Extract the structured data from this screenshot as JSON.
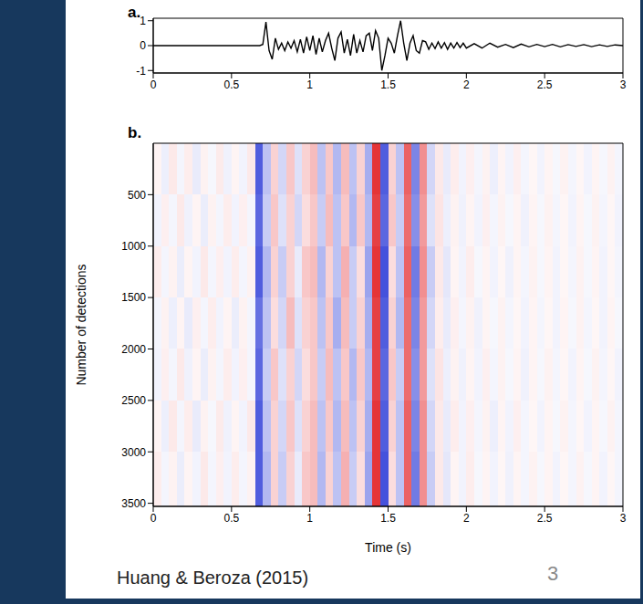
{
  "chart_data": [
    {
      "type": "line",
      "panel_label": "a.",
      "color": "#000000",
      "x": [
        0,
        0.5,
        0.68,
        0.7,
        0.72,
        0.74,
        0.76,
        0.78,
        0.8,
        0.82,
        0.84,
        0.86,
        0.88,
        0.9,
        0.92,
        0.94,
        0.96,
        0.98,
        1,
        1.02,
        1.04,
        1.06,
        1.08,
        1.1,
        1.12,
        1.14,
        1.16,
        1.18,
        1.2,
        1.22,
        1.24,
        1.26,
        1.28,
        1.3,
        1.32,
        1.34,
        1.36,
        1.38,
        1.4,
        1.42,
        1.44,
        1.46,
        1.48,
        1.5,
        1.52,
        1.54,
        1.56,
        1.58,
        1.6,
        1.62,
        1.64,
        1.66,
        1.68,
        1.7,
        1.72,
        1.74,
        1.76,
        1.78,
        1.8,
        1.82,
        1.84,
        1.86,
        1.88,
        1.9,
        1.92,
        1.94,
        1.96,
        1.98,
        2,
        2.05,
        2.1,
        2.15,
        2.2,
        2.25,
        2.3,
        2.35,
        2.4,
        2.45,
        2.5,
        2.55,
        2.6,
        2.65,
        2.7,
        2.75,
        2.8,
        2.85,
        2.9,
        2.95,
        3
      ],
      "values": [
        0,
        0,
        0,
        0.05,
        0.95,
        -0.2,
        -0.55,
        0.3,
        -0.15,
        0.1,
        -0.2,
        0.15,
        -0.1,
        0.2,
        -0.25,
        0.25,
        -0.3,
        0.35,
        -0.2,
        0.4,
        -0.35,
        0.3,
        -0.25,
        0.2,
        0.5,
        -0.1,
        -0.6,
        0.3,
        0.55,
        -0.3,
        0.25,
        -0.4,
        0.45,
        -0.3,
        0.2,
        -0.25,
        0.4,
        0.5,
        -0.2,
        0.6,
        0.3,
        -1.0,
        -0.4,
        0.3,
        0.1,
        -0.3,
        0.4,
        1.0,
        0.1,
        -0.6,
        0.1,
        0.4,
        -0.2,
        -0.3,
        0.2,
        0.15,
        -0.15,
        0.1,
        -0.12,
        0.15,
        -0.1,
        0.12,
        -0.15,
        0.1,
        -0.1,
        0.12,
        -0.08,
        0.1,
        -0.1,
        0.08,
        -0.1,
        0.1,
        -0.06,
        0.05,
        -0.08,
        0.06,
        -0.05,
        0.05,
        -0.04,
        0.05,
        -0.05,
        0.04,
        -0.03,
        0.04,
        -0.04,
        0.03,
        -0.03,
        0.03,
        0
      ],
      "xlim": [
        0,
        3
      ],
      "xticks": [
        0,
        0.5,
        1,
        1.5,
        2,
        2.5,
        3
      ],
      "ylim": [
        -1.1,
        1.1
      ],
      "yticks": [
        -1,
        0,
        1
      ]
    },
    {
      "type": "heatmap",
      "panel_label": "b.",
      "x_label": "Time (s)",
      "y_label": "Number of detections",
      "xbins": [
        0,
        0.05,
        0.1,
        0.15,
        0.2,
        0.25,
        0.3,
        0.35,
        0.4,
        0.45,
        0.5,
        0.55,
        0.6,
        0.65,
        0.7,
        0.75,
        0.8,
        0.85,
        0.9,
        0.95,
        1,
        1.05,
        1.1,
        1.15,
        1.2,
        1.25,
        1.3,
        1.35,
        1.4,
        1.45,
        1.5,
        1.55,
        1.6,
        1.65,
        1.7,
        1.75,
        1.8,
        1.85,
        1.9,
        1.95,
        2,
        2.05,
        2.1,
        2.15,
        2.2,
        2.25,
        2.3,
        2.35,
        2.4,
        2.45,
        2.5,
        2.55,
        2.6,
        2.65,
        2.7,
        2.75,
        2.8,
        2.85,
        2.9,
        2.95,
        3
      ],
      "ybins": [
        0,
        500,
        1000,
        1500,
        2000,
        2500,
        3000,
        3530
      ],
      "cells": [
        [
          0.05,
          -0.08,
          0.1,
          -0.05,
          0.08,
          -0.1,
          0.06,
          -0.04,
          0.09,
          -0.07,
          0.05,
          -0.06,
          0.1,
          -0.8,
          -0.3,
          0.2,
          -0.2,
          0.25,
          -0.15,
          0.2,
          0.3,
          -0.3,
          0.25,
          -0.35,
          0.3,
          -0.3,
          0.2,
          -0.4,
          0.9,
          -0.8,
          0.2,
          -0.3,
          0.7,
          -0.6,
          0.5,
          -0.2,
          0.1,
          -0.1,
          0.08,
          -0.06,
          0.07,
          -0.05,
          0.06,
          -0.08,
          0.05,
          -0.06,
          0.07,
          -0.05,
          0.04,
          -0.06,
          0.05,
          -0.04,
          0.06,
          -0.05,
          0.04,
          -0.06,
          0.05,
          -0.04,
          0.06,
          -0.05
        ],
        [
          -0.06,
          0.07,
          -0.05,
          0.1,
          -0.07,
          0.05,
          -0.09,
          0.06,
          -0.05,
          0.08,
          -0.06,
          0.07,
          -0.05,
          -0.75,
          -0.25,
          0.25,
          -0.15,
          0.2,
          -0.2,
          0.15,
          0.25,
          -0.25,
          0.3,
          -0.3,
          0.25,
          -0.35,
          0.25,
          -0.35,
          0.85,
          -0.75,
          0.25,
          -0.25,
          0.65,
          -0.55,
          0.45,
          -0.15,
          0.12,
          -0.08,
          0.06,
          -0.07,
          0.05,
          -0.06,
          0.07,
          -0.05,
          0.06,
          -0.04,
          0.05,
          -0.07,
          0.05,
          -0.04,
          0.06,
          -0.05,
          0.04,
          -0.06,
          0.05,
          -0.04,
          0.06,
          -0.05,
          0.04,
          -0.06
        ],
        [
          0.08,
          -0.05,
          0.06,
          -0.09,
          0.05,
          -0.06,
          0.1,
          -0.05,
          0.07,
          -0.06,
          0.08,
          -0.05,
          0.06,
          -0.8,
          -0.35,
          0.2,
          -0.25,
          0.2,
          -0.1,
          0.25,
          0.3,
          -0.35,
          0.2,
          -0.3,
          0.35,
          -0.25,
          0.15,
          -0.45,
          0.9,
          -0.85,
          0.15,
          -0.3,
          0.7,
          -0.65,
          0.5,
          -0.25,
          0.1,
          -0.12,
          0.05,
          -0.06,
          0.08,
          -0.04,
          0.05,
          -0.06,
          0.04,
          -0.07,
          0.05,
          -0.05,
          0.06,
          -0.04,
          0.05,
          -0.06,
          0.04,
          -0.05,
          0.06,
          -0.04,
          0.05,
          -0.06,
          0.04,
          -0.05
        ],
        [
          -0.05,
          0.06,
          -0.08,
          0.05,
          -0.1,
          0.07,
          -0.05,
          0.08,
          -0.06,
          0.05,
          -0.09,
          0.06,
          -0.05,
          -0.7,
          -0.3,
          0.15,
          -0.2,
          0.3,
          -0.15,
          0.2,
          0.25,
          -0.3,
          0.25,
          -0.4,
          0.3,
          -0.25,
          0.2,
          -0.4,
          0.85,
          -0.8,
          0.2,
          -0.35,
          0.65,
          -0.6,
          0.45,
          -0.2,
          0.08,
          -0.1,
          0.07,
          -0.05,
          0.06,
          -0.07,
          0.05,
          -0.04,
          0.06,
          -0.05,
          0.04,
          -0.06,
          0.05,
          -0.05,
          0.04,
          -0.06,
          0.05,
          -0.04,
          0.06,
          -0.05,
          0.04,
          -0.06,
          0.05,
          -0.04
        ],
        [
          -0.06,
          0.07,
          -0.05,
          0.1,
          -0.07,
          0.05,
          -0.09,
          0.06,
          -0.05,
          0.08,
          -0.06,
          0.07,
          -0.05,
          -0.75,
          -0.25,
          0.25,
          -0.15,
          0.2,
          -0.2,
          0.15,
          0.25,
          -0.25,
          0.3,
          -0.3,
          0.25,
          -0.35,
          0.25,
          -0.35,
          0.85,
          -0.75,
          0.25,
          -0.25,
          0.65,
          -0.55,
          0.45,
          -0.15,
          0.12,
          -0.08,
          0.06,
          -0.07,
          0.05,
          -0.06,
          0.07,
          -0.05,
          0.06,
          -0.04,
          0.05,
          -0.07,
          0.05,
          -0.04,
          0.06,
          -0.05,
          0.04,
          -0.06,
          0.05,
          -0.04,
          0.06,
          -0.05,
          0.04,
          -0.06
        ],
        [
          0.05,
          -0.08,
          0.1,
          -0.05,
          0.08,
          -0.1,
          0.06,
          -0.04,
          0.09,
          -0.07,
          0.05,
          -0.06,
          0.1,
          -0.8,
          -0.3,
          0.2,
          -0.2,
          0.25,
          -0.15,
          0.2,
          0.3,
          -0.3,
          0.25,
          -0.35,
          0.3,
          -0.3,
          0.2,
          -0.4,
          0.9,
          -0.8,
          0.2,
          -0.3,
          0.7,
          -0.6,
          0.5,
          -0.2,
          0.1,
          -0.1,
          0.08,
          -0.06,
          0.07,
          -0.05,
          0.06,
          -0.08,
          0.05,
          -0.06,
          0.07,
          -0.05,
          0.04,
          -0.06,
          0.05,
          -0.04,
          0.06,
          -0.05,
          0.04,
          -0.06,
          0.05,
          -0.04,
          0.06,
          -0.05
        ],
        [
          0.08,
          -0.05,
          0.06,
          -0.09,
          0.05,
          -0.06,
          0.1,
          -0.05,
          0.07,
          -0.06,
          0.08,
          -0.05,
          0.06,
          -0.8,
          -0.35,
          0.2,
          -0.25,
          0.2,
          -0.1,
          0.25,
          0.3,
          -0.35,
          0.2,
          -0.3,
          0.35,
          -0.25,
          0.15,
          -0.45,
          0.9,
          -0.85,
          0.15,
          -0.3,
          0.7,
          -0.65,
          0.5,
          -0.25,
          0.1,
          -0.12,
          0.05,
          -0.06,
          0.08,
          -0.04,
          0.05,
          -0.06,
          0.04,
          -0.07,
          0.05,
          -0.05,
          0.06,
          -0.04,
          0.05,
          -0.06,
          0.04,
          -0.05,
          0.06,
          -0.04,
          0.05,
          -0.06,
          0.04,
          -0.05
        ]
      ],
      "color_range": [
        -1,
        1
      ],
      "xlim": [
        0,
        3
      ],
      "xticks": [
        0,
        0.5,
        1,
        1.5,
        2,
        2.5,
        3
      ],
      "ylim": [
        0,
        3530
      ],
      "yticks": [
        500,
        1000,
        1500,
        2000,
        2500,
        3000,
        3500
      ]
    }
  ],
  "caption": "Huang & Beroza (2015)",
  "page_number": "3"
}
